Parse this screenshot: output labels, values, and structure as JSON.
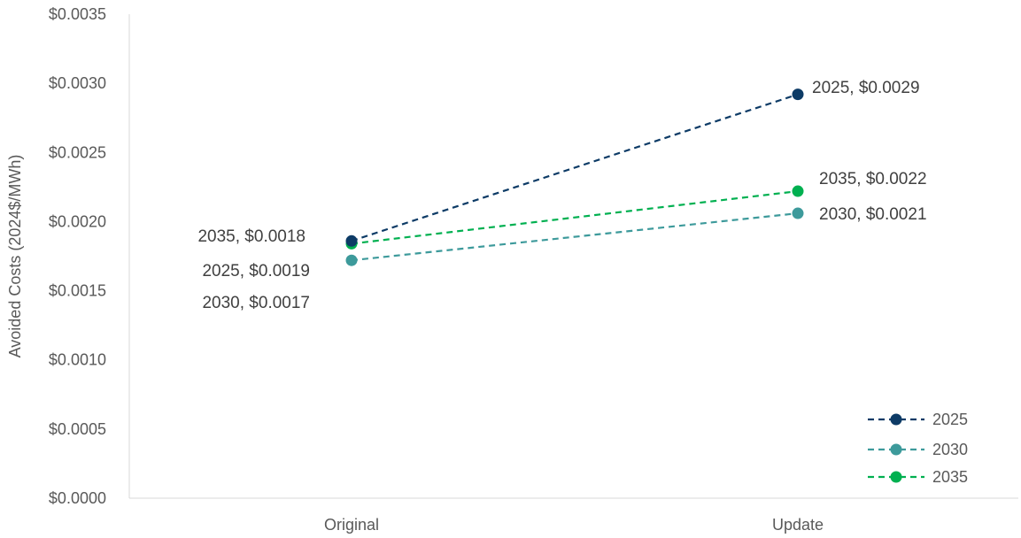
{
  "chart_data": {
    "type": "line",
    "title": "",
    "xlabel": "",
    "ylabel": "Avoided Costs (2024$/MWh)",
    "categories": [
      "Original",
      "Update"
    ],
    "ylim": [
      0,
      0.0035
    ],
    "yticks": [
      0,
      0.0005,
      0.001,
      0.0015,
      0.002,
      0.0025,
      0.003,
      0.0035
    ],
    "ytick_labels": [
      "$0.0000",
      "$0.0005",
      "$0.0010",
      "$0.0015",
      "$0.0020",
      "$0.0025",
      "$0.0030",
      "$0.0035"
    ],
    "grid": false,
    "legend_position": "bottom-right",
    "line_style": "dashed",
    "series": [
      {
        "name": "2025",
        "color": "#0d3b66",
        "values": [
          0.00186,
          0.00292
        ],
        "labels": [
          "2025, $0.0019",
          "2025, $0.0029"
        ]
      },
      {
        "name": "2030",
        "color": "#3d9a9b",
        "values": [
          0.00172,
          0.00206
        ],
        "labels": [
          "2030, $0.0017",
          "2030, $0.0021"
        ]
      },
      {
        "name": "2035",
        "color": "#00b050",
        "values": [
          0.00184,
          0.00222
        ],
        "labels": [
          "2035, $0.0018",
          "2035, $0.0022"
        ]
      }
    ]
  }
}
